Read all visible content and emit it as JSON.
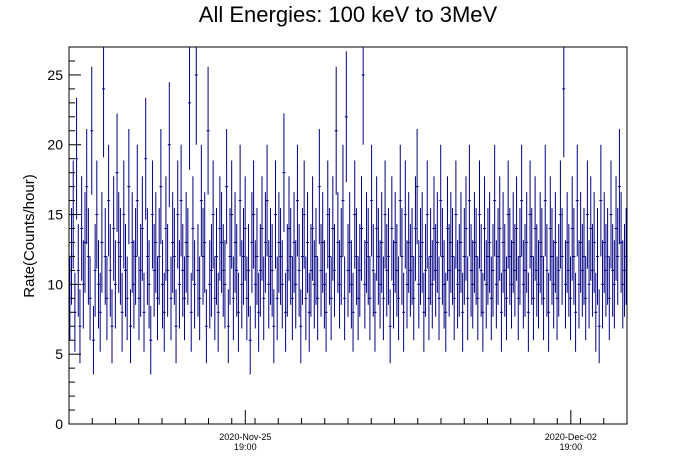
{
  "chart_data": {
    "type": "scatter",
    "title": "All Energies:  100 keV to 3MeV",
    "xlabel": "",
    "ylabel": "Rate(Counts/hour)",
    "ylim": [
      0,
      27
    ],
    "yticks": [
      0,
      5,
      10,
      15,
      20,
      25
    ],
    "xticks": [
      {
        "x": "2020-Nov-25 19:00",
        "date": "2020-Nov-25",
        "time": "19:00"
      },
      {
        "x": "2020-Dec-02 19:00",
        "date": "2020-Dec-02",
        "time": "19:00"
      }
    ],
    "xlim": [
      "2020-Nov-22 00:00",
      "2020-Dec-04 00:00"
    ],
    "grid": false,
    "marker_color": "#000080",
    "series": [
      {
        "error_bars": "y",
        "values": [
          9,
          12,
          15,
          8,
          19,
          11,
          7,
          14,
          10,
          13,
          17,
          12,
          9,
          21,
          6,
          11,
          15,
          10,
          8,
          13,
          24,
          12,
          9,
          16,
          11,
          7,
          14,
          10,
          18,
          13,
          12,
          8,
          15,
          11,
          9,
          17,
          7,
          13,
          10,
          12,
          16,
          9,
          11,
          14,
          8,
          19,
          12,
          10,
          6,
          15,
          11,
          13,
          9,
          12,
          17,
          10,
          8,
          14,
          11,
          20,
          9,
          13,
          12,
          7,
          15,
          10,
          16,
          11,
          9,
          13,
          12,
          23,
          8,
          14,
          10,
          25,
          11,
          9,
          16,
          12,
          13,
          7,
          21,
          10,
          11,
          15,
          9,
          12,
          8,
          14,
          13,
          11,
          10,
          17,
          7,
          12,
          15,
          9,
          13,
          11,
          8,
          16,
          10,
          12,
          14,
          9,
          11,
          6,
          13,
          15,
          10,
          12,
          8,
          11,
          14,
          9,
          13,
          16,
          10,
          12,
          11,
          7,
          15,
          9,
          13,
          12,
          10,
          18,
          8,
          11,
          14,
          12,
          9,
          13,
          10,
          16,
          11,
          7,
          12,
          15,
          9,
          13,
          8,
          11,
          14,
          10,
          12,
          9,
          17,
          11,
          13,
          10,
          8,
          15,
          12,
          9,
          14,
          11,
          21,
          13,
          10,
          12,
          16,
          9,
          22,
          11,
          13,
          10,
          8,
          15,
          12,
          9,
          11,
          14,
          25,
          10,
          13,
          12,
          9,
          16,
          11,
          8,
          14,
          12,
          10,
          13,
          9,
          15,
          11,
          12,
          7,
          14,
          10,
          13,
          11,
          9,
          16,
          12,
          8,
          15,
          10,
          13,
          11,
          12,
          9,
          14,
          17,
          10,
          12,
          13,
          8,
          11,
          15,
          9,
          12,
          10,
          14,
          11,
          13,
          9,
          16,
          12,
          10,
          8,
          14,
          11,
          13,
          12,
          9,
          15,
          10,
          11,
          13,
          8,
          12,
          14,
          9,
          16,
          11,
          10,
          13,
          12,
          9,
          15,
          11,
          8,
          14,
          10,
          12,
          13,
          9,
          11,
          16,
          10,
          12,
          14,
          8,
          13,
          11,
          9,
          15,
          12,
          10,
          13,
          11,
          14,
          9,
          12,
          16,
          10,
          11,
          13,
          8,
          15,
          12,
          9,
          14,
          11,
          10,
          13,
          12,
          9,
          16,
          11,
          8,
          14,
          12,
          10,
          13,
          9,
          11,
          15,
          12,
          24,
          10,
          13,
          11,
          9,
          14,
          12,
          8,
          16,
          10,
          13,
          11,
          12,
          9,
          15,
          10,
          14,
          11,
          13,
          8,
          12,
          7,
          16,
          10,
          13,
          11,
          12,
          9,
          15,
          11,
          10,
          14,
          12,
          17,
          13,
          10,
          11,
          12
        ]
      }
    ]
  }
}
